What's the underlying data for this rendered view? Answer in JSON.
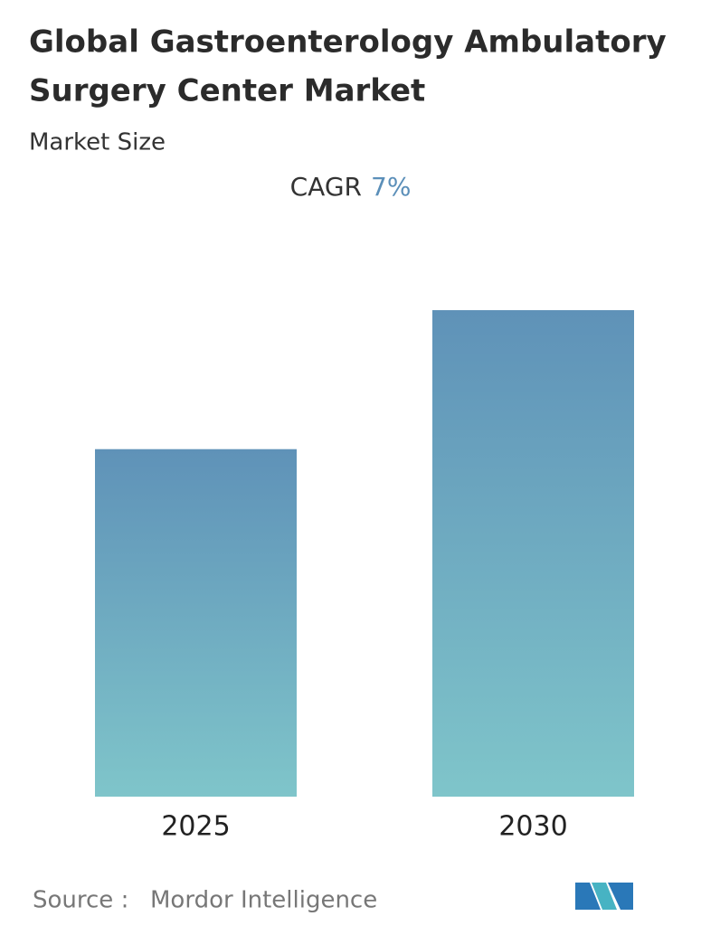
{
  "chart_data": {
    "type": "bar",
    "title": [
      "Global Gastroenterology Ambulatory",
      "Surgery Center Market"
    ],
    "subtitle": "Market Size",
    "cagr": {
      "label": "CAGR",
      "value": "7%"
    },
    "categories": [
      "2025",
      "2030"
    ],
    "values": [
      1,
      1.4
    ],
    "source": {
      "label": "Source :",
      "value": "Mordor Intelligence"
    }
  }
}
